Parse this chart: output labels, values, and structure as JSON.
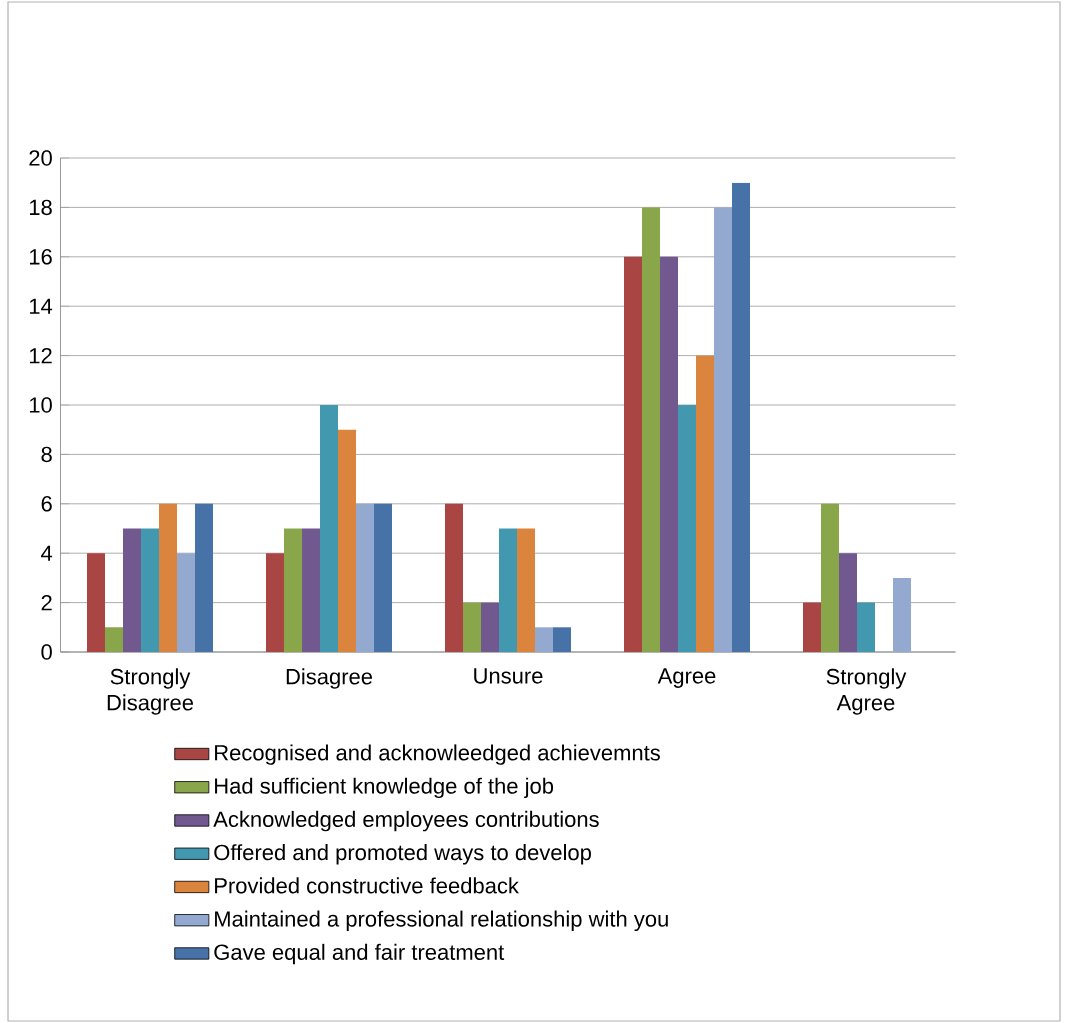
{
  "chart_data": {
    "type": "bar",
    "categories": [
      "Strongly Disagree",
      "Disagree",
      "Unsure",
      "Agree",
      "Strongly Agree"
    ],
    "series": [
      {
        "name": "Recognised and acknowleedged achievemnts",
        "color": "#a94543",
        "values": [
          4,
          4,
          6,
          16,
          2
        ]
      },
      {
        "name": "Had sufficient knowledge of the job",
        "color": "#8aa64a",
        "values": [
          1,
          5,
          2,
          18,
          6
        ]
      },
      {
        "name": "Acknowledged employees contributions",
        "color": "#71588f",
        "values": [
          5,
          5,
          2,
          16,
          4
        ]
      },
      {
        "name": "Offered and promoted ways to develop",
        "color": "#4298af",
        "values": [
          5,
          10,
          5,
          10,
          2
        ]
      },
      {
        "name": "Provided constructive feedback",
        "color": "#db843d",
        "values": [
          6,
          9,
          5,
          12,
          0
        ]
      },
      {
        "name": "Maintained a professional relationship with you",
        "color": "#93a9d0",
        "values": [
          4,
          6,
          1,
          18,
          3
        ]
      },
      {
        "name": "Gave equal and fair treatment",
        "color": "#4672a8",
        "values": [
          6,
          6,
          1,
          19,
          0
        ]
      }
    ],
    "ylim": [
      0,
      20
    ],
    "yticks": [
      0,
      2,
      4,
      6,
      8,
      10,
      12,
      14,
      16,
      18,
      20
    ],
    "grid": "y",
    "legend": "bottom"
  }
}
